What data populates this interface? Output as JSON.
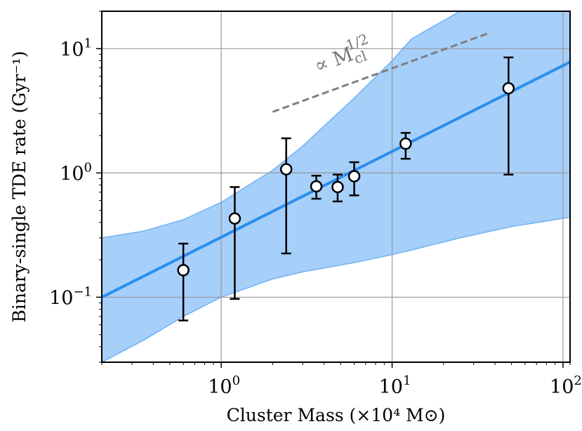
{
  "chart_data": {
    "type": "scatter",
    "title": "",
    "xlabel": "Cluster Mass (×10⁴ M⊙)",
    "ylabel": "Binary-single TDE rate (Gyr⁻¹)",
    "xscale": "log",
    "yscale": "log",
    "xlim": [
      0.2,
      110
    ],
    "ylim": [
      0.03,
      20
    ],
    "grid": true,
    "x_ticks": [
      {
        "value": 1,
        "base": "10",
        "exp": "0"
      },
      {
        "value": 10,
        "base": "10",
        "exp": "1"
      },
      {
        "value": 100,
        "base": "10",
        "exp": "2"
      }
    ],
    "y_ticks": [
      {
        "value": 0.1,
        "base": "10",
        "exp": "−1"
      },
      {
        "value": 1,
        "base": "10",
        "exp": "0"
      },
      {
        "value": 10,
        "base": "10",
        "exp": "1"
      }
    ],
    "points": [
      {
        "x": 0.6,
        "y": 0.165,
        "ylow": 0.065,
        "yhigh": 0.27
      },
      {
        "x": 1.2,
        "y": 0.43,
        "ylow": 0.097,
        "yhigh": 0.77
      },
      {
        "x": 2.4,
        "y": 1.07,
        "ylow": 0.225,
        "yhigh": 1.9
      },
      {
        "x": 3.6,
        "y": 0.78,
        "ylow": 0.62,
        "yhigh": 0.95
      },
      {
        "x": 4.8,
        "y": 0.77,
        "ylow": 0.59,
        "yhigh": 0.97
      },
      {
        "x": 6.0,
        "y": 0.94,
        "ylow": 0.66,
        "yhigh": 1.22
      },
      {
        "x": 12.0,
        "y": 1.72,
        "ylow": 1.3,
        "yhigh": 2.1
      },
      {
        "x": 48.0,
        "y": 4.8,
        "ylow": 0.97,
        "yhigh": 8.5
      }
    ],
    "fit_line": {
      "name": "best fit",
      "color": "#2b8ef0",
      "x": [
        0.2,
        110
      ],
      "y": [
        0.1,
        7.8
      ]
    },
    "confidence_band": {
      "color": "#a6cffa",
      "x": [
        0.2,
        0.35,
        0.6,
        1.0,
        2.0,
        3.0,
        6.0,
        10.0,
        13.0,
        25.0,
        50.0,
        110.0
      ],
      "upper": [
        0.3,
        0.34,
        0.42,
        0.58,
        1.05,
        1.65,
        4.0,
        8.0,
        12.0,
        20.0,
        20.0,
        20.0
      ],
      "lower": [
        0.03,
        0.045,
        0.07,
        0.1,
        0.14,
        0.16,
        0.19,
        0.22,
        0.24,
        0.3,
        0.37,
        0.44
      ]
    },
    "reference_line": {
      "label_prefix": "∝ M",
      "label_sub": "cl",
      "label_sup": "1/2",
      "color": "#808080",
      "x": [
        2.0,
        36.0
      ],
      "y": [
        3.1,
        13.2
      ]
    },
    "colors": {
      "marker_face": "#ffffff",
      "marker_edge": "#000000",
      "errorbar": "#000000",
      "grid": "#999999"
    }
  }
}
